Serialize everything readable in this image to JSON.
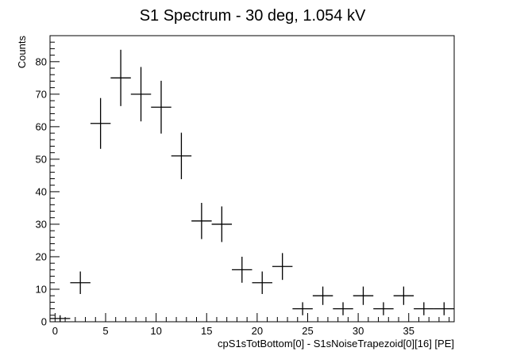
{
  "chart_data": {
    "type": "scatter",
    "title": "S1 Spectrum - 30 deg, 1.054 kV",
    "xlabel": "cpS1sTotBottom[0] - S1sNoiseTrapezoid[0][16] [PE]",
    "ylabel": "Counts",
    "xlim": [
      -0.5,
      39.5
    ],
    "ylim": [
      0,
      88
    ],
    "x_ticks": [
      0,
      5,
      10,
      15,
      20,
      25,
      30,
      35
    ],
    "y_ticks": [
      0,
      10,
      20,
      30,
      40,
      50,
      60,
      70,
      80
    ],
    "bin_width": 2,
    "grid": false,
    "legend": "none",
    "series": [
      {
        "points": [
          {
            "x": 0.5,
            "y": 1
          },
          {
            "x": 2.5,
            "y": 12
          },
          {
            "x": 4.5,
            "y": 61
          },
          {
            "x": 6.5,
            "y": 75
          },
          {
            "x": 8.5,
            "y": 70
          },
          {
            "x": 10.5,
            "y": 66
          },
          {
            "x": 12.5,
            "y": 51
          },
          {
            "x": 14.5,
            "y": 31
          },
          {
            "x": 16.5,
            "y": 30
          },
          {
            "x": 18.5,
            "y": 16
          },
          {
            "x": 20.5,
            "y": 12
          },
          {
            "x": 22.5,
            "y": 17
          },
          {
            "x": 24.5,
            "y": 4
          },
          {
            "x": 26.5,
            "y": 8
          },
          {
            "x": 28.5,
            "y": 4
          },
          {
            "x": 30.5,
            "y": 8
          },
          {
            "x": 32.5,
            "y": 4
          },
          {
            "x": 34.5,
            "y": 8
          },
          {
            "x": 36.5,
            "y": 4
          },
          {
            "x": 38.5,
            "y": 4
          }
        ]
      }
    ]
  }
}
